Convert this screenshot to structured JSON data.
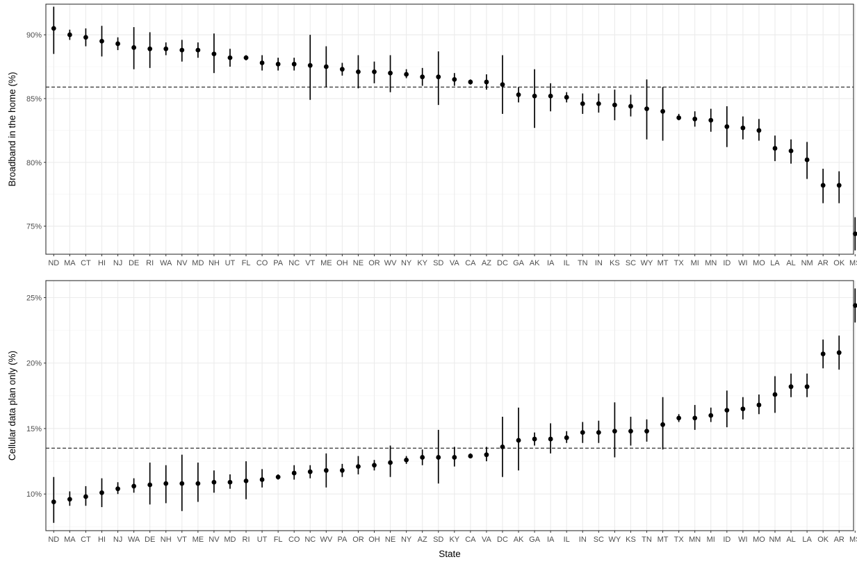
{
  "figure": {
    "xlabel": "State"
  },
  "chart_data": [
    {
      "type": "scatter",
      "ylabel": "Broadband in the home (%)",
      "ylim": [
        72.8,
        92.4
      ],
      "yticks": [
        75,
        80,
        85,
        90
      ],
      "ytick_labels": [
        "75%",
        "80%",
        "85%",
        "90%"
      ],
      "reference_line": 85.9,
      "grid": true,
      "categories": [
        "ND",
        "MA",
        "CT",
        "HI",
        "NJ",
        "DE",
        "RI",
        "WA",
        "NV",
        "MD",
        "NH",
        "UT",
        "FL",
        "CO",
        "PA",
        "NC",
        "VT",
        "ME",
        "OH",
        "NE",
        "OR",
        "WV",
        "NY",
        "KY",
        "SD",
        "VA",
        "CA",
        "AZ",
        "DC",
        "GA",
        "AK",
        "IA",
        "IL",
        "TN",
        "IN",
        "KS",
        "SC",
        "WY",
        "MT",
        "TX",
        "MI",
        "MN",
        "ID",
        "WI",
        "MO",
        "LA",
        "AL",
        "NM",
        "AR",
        "OK",
        "MS"
      ],
      "values": [
        90.5,
        90.0,
        89.8,
        89.5,
        89.3,
        89.0,
        88.9,
        88.9,
        88.8,
        88.8,
        88.5,
        88.2,
        88.2,
        87.8,
        87.7,
        87.7,
        87.6,
        87.5,
        87.3,
        87.1,
        87.1,
        87.0,
        86.9,
        86.7,
        86.7,
        86.5,
        86.3,
        86.3,
        86.1,
        85.3,
        85.2,
        85.2,
        85.1,
        84.6,
        84.6,
        84.5,
        84.4,
        84.2,
        84.0,
        83.5,
        83.4,
        83.3,
        82.8,
        82.7,
        82.5,
        81.1,
        80.9,
        80.2,
        78.2,
        78.2,
        74.4
      ],
      "lower": [
        88.5,
        89.6,
        89.1,
        88.3,
        88.8,
        87.3,
        87.4,
        88.4,
        87.9,
        88.2,
        87.0,
        87.5,
        88.0,
        87.2,
        87.2,
        87.2,
        84.9,
        85.9,
        86.8,
        85.8,
        86.2,
        85.5,
        86.6,
        86.0,
        84.5,
        86.0,
        86.1,
        85.7,
        83.8,
        84.7,
        82.7,
        84.0,
        84.7,
        83.8,
        83.9,
        83.3,
        83.6,
        81.8,
        81.7,
        83.3,
        82.8,
        82.4,
        81.2,
        81.8,
        81.7,
        80.1,
        79.9,
        78.7,
        76.8,
        76.8,
        73.1
      ],
      "upper": [
        92.2,
        90.4,
        90.5,
        90.7,
        89.8,
        90.6,
        90.2,
        89.4,
        89.6,
        89.4,
        90.1,
        88.9,
        88.4,
        88.4,
        88.2,
        88.2,
        90.0,
        89.1,
        87.8,
        88.4,
        87.9,
        88.4,
        87.3,
        87.4,
        88.7,
        87.0,
        86.5,
        86.9,
        88.4,
        85.9,
        87.3,
        86.2,
        85.5,
        85.4,
        85.4,
        85.7,
        85.3,
        86.5,
        85.9,
        83.8,
        84.0,
        84.2,
        84.4,
        83.6,
        83.4,
        82.1,
        81.8,
        81.6,
        79.5,
        79.3,
        75.7
      ]
    },
    {
      "type": "scatter",
      "ylabel": "Cellular data plan only (%)",
      "ylim": [
        7.2,
        26.3
      ],
      "yticks": [
        10,
        15,
        20,
        25
      ],
      "ytick_labels": [
        "10%",
        "15%",
        "20%",
        "25%"
      ],
      "reference_line": 13.5,
      "grid": true,
      "categories": [
        "ND",
        "MA",
        "CT",
        "HI",
        "NJ",
        "WA",
        "DE",
        "NH",
        "VT",
        "ME",
        "NV",
        "MD",
        "RI",
        "UT",
        "FL",
        "CO",
        "NC",
        "WV",
        "PA",
        "OR",
        "OH",
        "NE",
        "NY",
        "AZ",
        "SD",
        "KY",
        "CA",
        "VA",
        "DC",
        "AK",
        "GA",
        "IA",
        "IL",
        "IN",
        "SC",
        "WY",
        "KS",
        "TN",
        "MT",
        "TX",
        "MN",
        "MI",
        "ID",
        "WI",
        "MO",
        "NM",
        "AL",
        "LA",
        "OK",
        "AR",
        "MS"
      ],
      "values": [
        9.4,
        9.6,
        9.8,
        10.1,
        10.4,
        10.6,
        10.7,
        10.8,
        10.8,
        10.8,
        10.9,
        10.9,
        11.0,
        11.1,
        11.3,
        11.6,
        11.7,
        11.8,
        11.8,
        12.1,
        12.2,
        12.4,
        12.6,
        12.8,
        12.8,
        12.8,
        12.9,
        13.0,
        13.6,
        14.1,
        14.2,
        14.2,
        14.3,
        14.7,
        14.7,
        14.8,
        14.8,
        14.8,
        15.3,
        15.8,
        15.8,
        16.0,
        16.4,
        16.5,
        16.8,
        17.6,
        18.2,
        18.2,
        20.7,
        20.8,
        24.4
      ],
      "lower": [
        7.8,
        9.1,
        9.1,
        9.0,
        10.0,
        10.1,
        9.2,
        9.3,
        8.7,
        9.4,
        10.1,
        10.4,
        9.6,
        10.5,
        11.1,
        11.1,
        11.2,
        10.5,
        11.3,
        11.5,
        11.8,
        11.3,
        12.3,
        12.2,
        10.8,
        12.1,
        12.8,
        12.5,
        11.3,
        11.8,
        13.7,
        13.1,
        13.9,
        13.9,
        13.9,
        12.8,
        13.7,
        14.0,
        13.4,
        15.5,
        14.9,
        15.5,
        15.1,
        15.7,
        16.1,
        16.2,
        17.4,
        17.4,
        19.6,
        19.5,
        23.1
      ],
      "upper": [
        11.3,
        10.2,
        10.6,
        11.2,
        10.9,
        11.2,
        12.4,
        12.2,
        13.0,
        12.4,
        11.8,
        11.5,
        12.5,
        11.9,
        11.5,
        12.2,
        12.2,
        13.1,
        12.3,
        12.9,
        12.6,
        13.7,
        12.9,
        13.4,
        14.9,
        13.6,
        13.1,
        13.6,
        15.9,
        16.6,
        14.7,
        15.4,
        14.8,
        15.5,
        15.6,
        17.0,
        15.9,
        15.7,
        17.4,
        16.1,
        16.8,
        16.6,
        17.9,
        17.4,
        17.6,
        19.0,
        19.2,
        19.2,
        21.8,
        22.1,
        25.7
      ]
    }
  ]
}
